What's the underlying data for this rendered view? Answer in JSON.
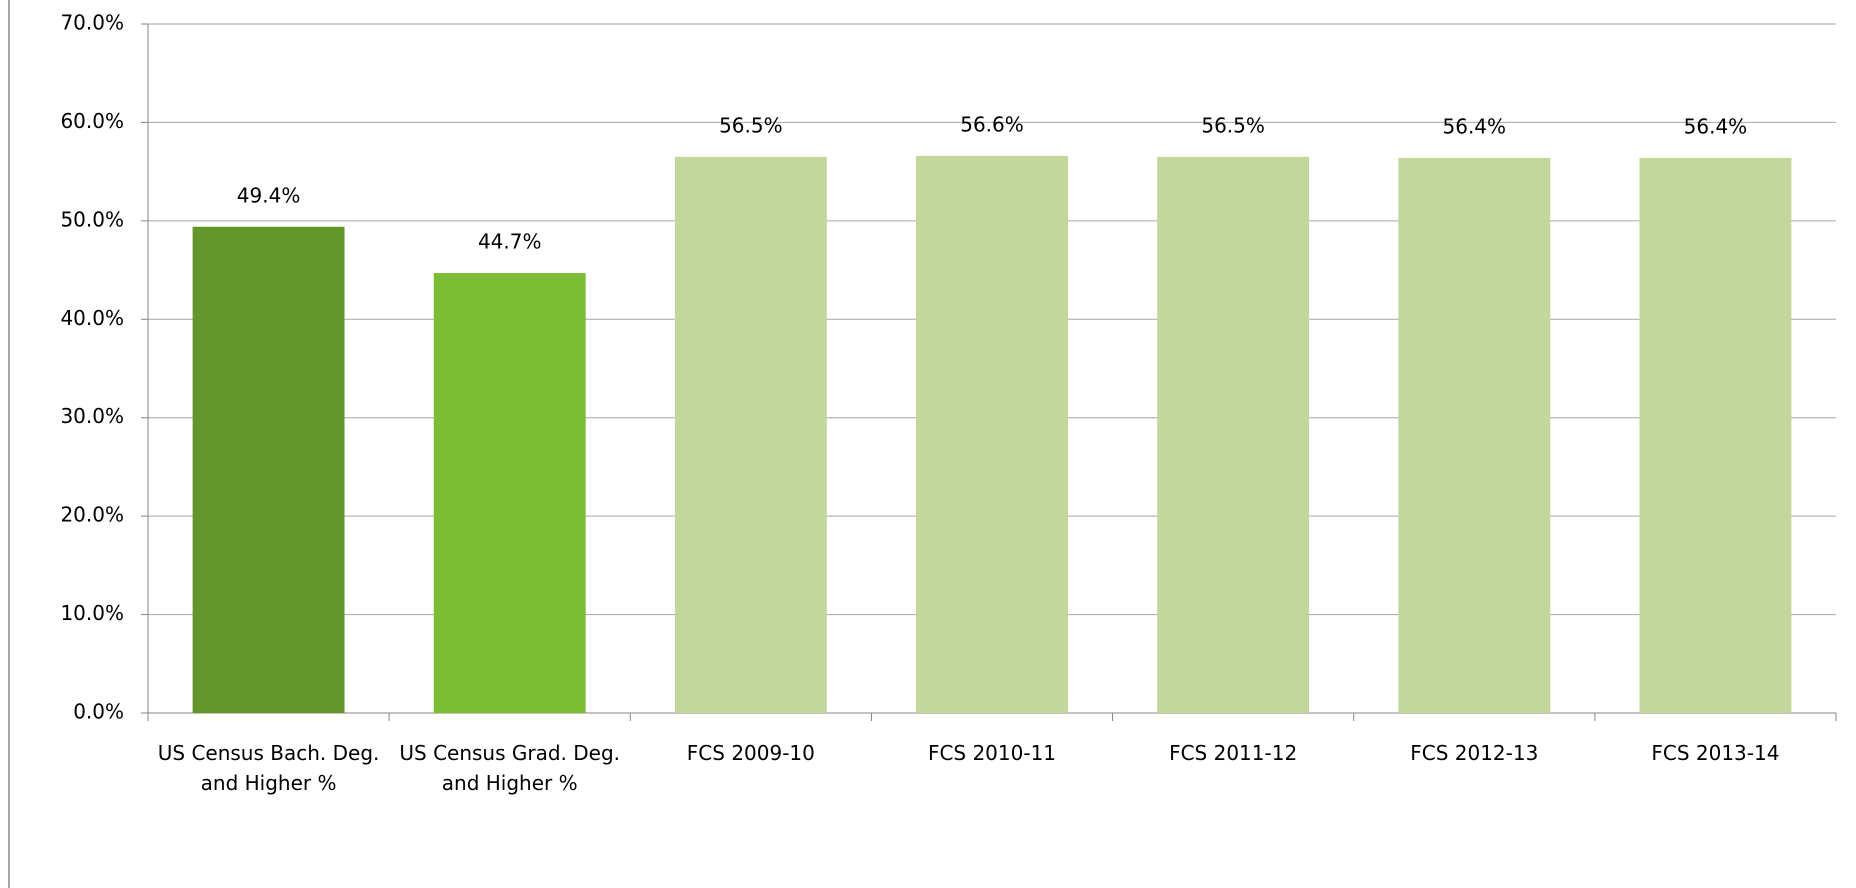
{
  "chart_data": {
    "type": "bar",
    "categories": [
      "US Census Bach. Deg. and Higher %",
      "US Census Grad. Deg. and Higher %",
      "FCS 2009-10",
      "FCS 2010-11",
      "FCS 2011-12",
      "FCS 2012-13",
      "FCS 2013-14"
    ],
    "values": [
      49.4,
      44.7,
      56.5,
      56.6,
      56.5,
      56.4,
      56.4
    ],
    "value_labels": [
      "49.4%",
      "44.7%",
      "56.5%",
      "56.6%",
      "56.5%",
      "56.4%",
      "56.4%"
    ],
    "colors": [
      "#64952a",
      "#7bbd33",
      "#c4d79b",
      "#c4d79b",
      "#c4d79b",
      "#c4d79b",
      "#c4d79b"
    ],
    "ylim": [
      0,
      70
    ],
    "yticks": [
      {
        "value": 0,
        "label": "0.0%"
      },
      {
        "value": 10,
        "label": "10.0%"
      },
      {
        "value": 20,
        "label": "20.0%"
      },
      {
        "value": 30,
        "label": "30.0%"
      },
      {
        "value": 40,
        "label": "40.0%"
      },
      {
        "value": 50,
        "label": "50.0%"
      },
      {
        "value": 60,
        "label": "60.0%"
      },
      {
        "value": 70,
        "label": "70.0%"
      }
    ],
    "grid": true
  }
}
